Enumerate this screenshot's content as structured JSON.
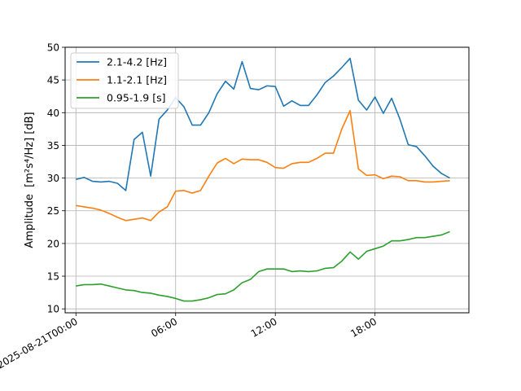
{
  "chart_data": {
    "type": "line",
    "title": "",
    "xlabel": "",
    "ylabel": "Amplitude",
    "ylabel_unit": "[m²s⁴/Hz] [dB]",
    "x_tick_labels": [
      "2025-08-21T00:00",
      "06:00",
      "12:00",
      "18:00"
    ],
    "x_tick_values_hours": [
      0,
      6,
      12,
      18
    ],
    "y_ticks": [
      10,
      15,
      20,
      25,
      30,
      35,
      40,
      45,
      50
    ],
    "xlim_hours": [
      -0.65,
      23.65
    ],
    "ylim": [
      9.4,
      50.0
    ],
    "grid": true,
    "legend_position": "upper-left",
    "x_hours": [
      0,
      0.5,
      1,
      1.5,
      2,
      2.5,
      3,
      3.5,
      4,
      4.5,
      5,
      5.5,
      6,
      6.5,
      7,
      7.5,
      8,
      8.5,
      9,
      9.5,
      10,
      10.5,
      11,
      11.5,
      12,
      12.5,
      13,
      13.5,
      14,
      14.5,
      15,
      15.5,
      16,
      16.5,
      17,
      17.5,
      18,
      18.5,
      19,
      19.5,
      20,
      20.5,
      21,
      21.5,
      22,
      22.5
    ],
    "series": [
      {
        "name": "2.1-4.2 [Hz]",
        "color": "#1f77b4",
        "values": [
          29.8,
          30.1,
          29.5,
          29.4,
          29.5,
          29.2,
          28.1,
          35.9,
          37.0,
          30.3,
          39.0,
          40.4,
          42.3,
          40.9,
          38.1,
          38.1,
          40.0,
          42.9,
          44.8,
          43.6,
          47.8,
          43.7,
          43.5,
          44.1,
          44.0,
          41.0,
          41.8,
          41.1,
          41.1,
          42.7,
          44.6,
          45.6,
          46.9,
          48.3,
          41.9,
          40.4,
          42.4,
          39.9,
          42.2,
          39.0,
          35.1,
          34.8,
          33.4,
          31.8,
          30.7,
          30.0
        ]
      },
      {
        "name": "1.1-2.1 [Hz]",
        "color": "#ff7f0e",
        "values": [
          25.8,
          25.6,
          25.4,
          25.1,
          24.6,
          24.0,
          23.5,
          23.7,
          23.9,
          23.5,
          24.8,
          25.6,
          28.0,
          28.1,
          27.7,
          28.1,
          30.3,
          32.3,
          33.0,
          32.2,
          32.9,
          32.8,
          32.8,
          32.4,
          31.6,
          31.5,
          32.2,
          32.4,
          32.4,
          33.0,
          33.8,
          33.8,
          37.5,
          40.3,
          31.4,
          30.4,
          30.5,
          29.9,
          30.3,
          30.2,
          29.6,
          29.6,
          29.4,
          29.4,
          29.5,
          29.6
        ]
      },
      {
        "name": "0.95-1.9 [s]",
        "color": "#2ca02c",
        "values": [
          13.5,
          13.7,
          13.7,
          13.8,
          13.5,
          13.2,
          12.9,
          12.8,
          12.5,
          12.4,
          12.1,
          11.9,
          11.6,
          11.2,
          11.2,
          11.4,
          11.7,
          12.2,
          12.3,
          12.9,
          14.0,
          14.5,
          15.7,
          16.1,
          16.1,
          16.1,
          15.7,
          15.8,
          15.7,
          15.8,
          16.2,
          16.3,
          17.3,
          18.7,
          17.6,
          18.8,
          19.2,
          19.6,
          20.4,
          20.4,
          20.6,
          20.9,
          20.9,
          21.1,
          21.3,
          21.8
        ]
      }
    ]
  }
}
